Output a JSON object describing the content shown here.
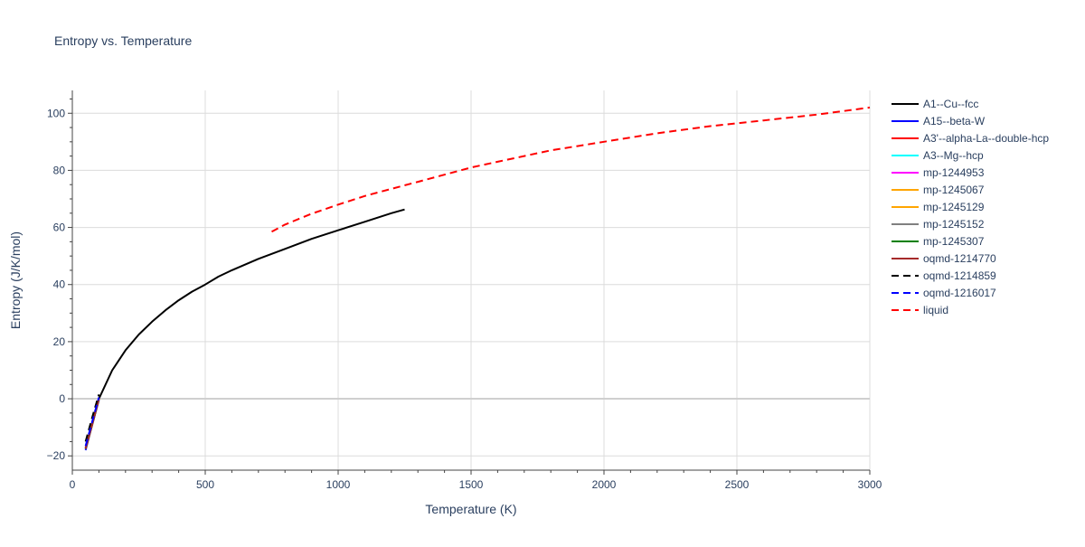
{
  "chart_data": {
    "type": "line",
    "title": "Entropy vs. Temperature",
    "xlabel": "Temperature (K)",
    "ylabel": "Entropy (J/K/mol)",
    "xlim": [
      0,
      3000
    ],
    "ylim": [
      -25,
      108
    ],
    "x_ticks": [
      0,
      500,
      1000,
      1500,
      2000,
      2500,
      3000
    ],
    "x_tick_labels": [
      "0",
      "500",
      "1000",
      "1500",
      "2000",
      "2500",
      "3000"
    ],
    "y_ticks": [
      -20,
      0,
      20,
      40,
      60,
      80,
      100
    ],
    "y_tick_labels": [
      "−20",
      "0",
      "20",
      "40",
      "60",
      "80",
      "100"
    ],
    "grid": true,
    "legend_position": "right",
    "series": [
      {
        "name": "A1--Cu--fcc",
        "color": "#000000",
        "dash": "solid",
        "x": [
          50,
          75,
          100,
          150,
          200,
          250,
          300,
          350,
          400,
          450,
          500,
          550,
          600,
          700,
          800,
          900,
          1000,
          1100,
          1200,
          1250
        ],
        "y": [
          -17,
          -9,
          0,
          10,
          17,
          22.5,
          27,
          31,
          34.5,
          37.5,
          40,
          42.8,
          45,
          49,
          52.5,
          56,
          59,
          62,
          65,
          66.3
        ]
      },
      {
        "name": "A15--beta-W",
        "color": "#0000ff",
        "dash": "solid",
        "x": [
          50,
          75,
          100
        ],
        "y": [
          -18,
          -9,
          -0.5
        ]
      },
      {
        "name": "A3'--alpha-La--double-hcp",
        "color": "#ff0000",
        "dash": "solid",
        "x": [
          50,
          75,
          100
        ],
        "y": [
          -17.5,
          -9,
          0
        ]
      },
      {
        "name": "A3--Mg--hcp",
        "color": "#00ffff",
        "dash": "solid",
        "x": [
          50,
          75,
          100
        ],
        "y": [
          -17.5,
          -9,
          0
        ]
      },
      {
        "name": "mp-1244953",
        "color": "#ff00ff",
        "dash": "solid",
        "x": [
          50,
          75,
          100
        ],
        "y": [
          -17,
          -8.5,
          0.3
        ]
      },
      {
        "name": "mp-1245067",
        "color": "#ffa500",
        "dash": "solid",
        "x": [
          50,
          75,
          100
        ],
        "y": [
          -17.5,
          -9,
          0
        ]
      },
      {
        "name": "mp-1245129",
        "color": "#ffa500",
        "dash": "solid",
        "x": [
          50,
          75,
          100
        ],
        "y": [
          -17.5,
          -9,
          0
        ]
      },
      {
        "name": "mp-1245152",
        "color": "#808080",
        "dash": "solid",
        "x": [
          50,
          75,
          100
        ],
        "y": [
          -17.5,
          -9,
          0
        ]
      },
      {
        "name": "mp-1245307",
        "color": "#008000",
        "dash": "solid",
        "x": [
          50,
          75,
          100
        ],
        "y": [
          -17.5,
          -9,
          0
        ]
      },
      {
        "name": "oqmd-1214770",
        "color": "#a52a2a",
        "dash": "solid",
        "x": [
          50,
          75,
          100
        ],
        "y": [
          -17.5,
          -9,
          0
        ]
      },
      {
        "name": "oqmd-1214859",
        "color": "#000000",
        "dash": "dash",
        "x": [
          50,
          75,
          100
        ],
        "y": [
          -15,
          -6.5,
          1.5
        ]
      },
      {
        "name": "oqmd-1216017",
        "color": "#0000ff",
        "dash": "dash",
        "x": [
          50,
          75,
          100
        ],
        "y": [
          -16.5,
          -8,
          0.5
        ]
      },
      {
        "name": "liquid",
        "color": "#ff0000",
        "dash": "dash",
        "x": [
          750,
          800,
          900,
          1000,
          1100,
          1200,
          1300,
          1400,
          1500,
          1600,
          1700,
          1800,
          1900,
          2000,
          2200,
          2400,
          2600,
          2800,
          3000
        ],
        "y": [
          58.5,
          61,
          64.8,
          68,
          71,
          73.5,
          76,
          78.5,
          81,
          83,
          85,
          87,
          88.5,
          90,
          93,
          95.5,
          97.5,
          99.5,
          102
        ]
      }
    ]
  }
}
